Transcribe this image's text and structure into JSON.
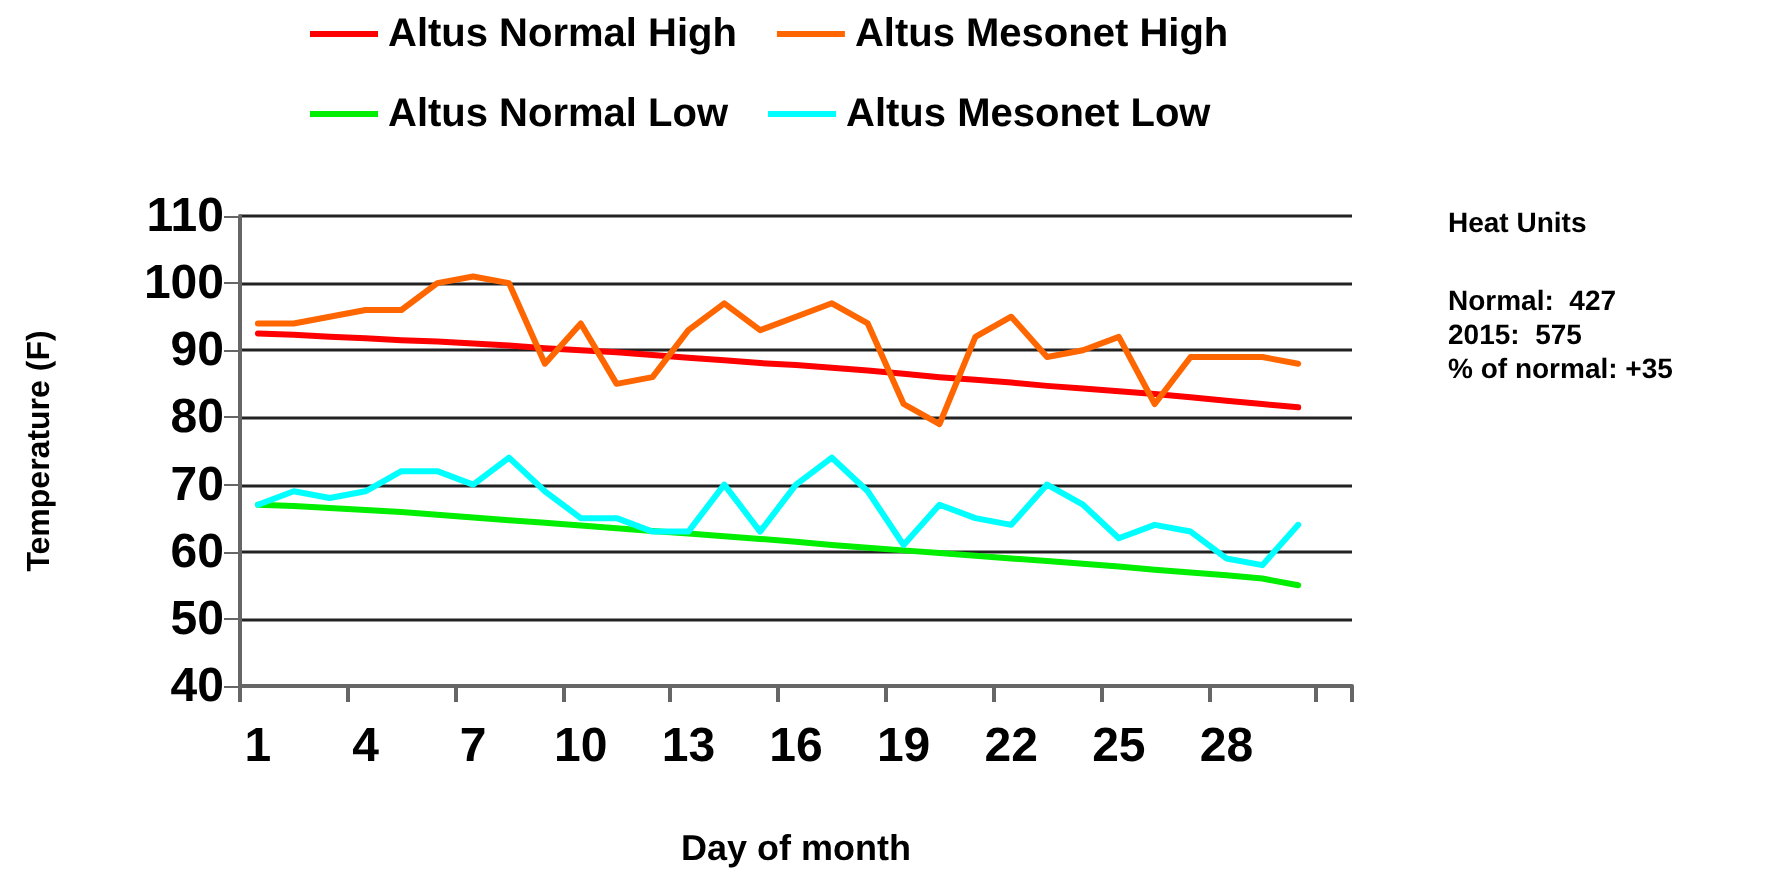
{
  "chart_data": {
    "type": "line",
    "xlabel": "Day of month",
    "ylabel": "Temperature (F)",
    "categories": [
      "1",
      null,
      null,
      "4",
      null,
      null,
      "7",
      null,
      null,
      "10",
      null,
      null,
      "13",
      null,
      null,
      "16",
      null,
      null,
      "19",
      null,
      null,
      "22",
      null,
      null,
      "25",
      null,
      null,
      "28",
      null,
      null,
      null
    ],
    "series": [
      {
        "name": "Altus Normal High",
        "color": "#ff0000",
        "values": [
          92.5,
          92.3,
          92.0,
          91.8,
          91.5,
          91.3,
          91.0,
          90.7,
          90.3,
          90.0,
          89.7,
          89.3,
          88.9,
          88.5,
          88.1,
          87.8,
          87.4,
          87.0,
          86.5,
          86.0,
          85.6,
          85.2,
          84.7,
          84.3,
          83.9,
          83.5,
          83.0,
          82.5,
          82.0,
          81.5,
          null
        ]
      },
      {
        "name": "Altus Mesonet High",
        "color": "#ff6600",
        "values": [
          94,
          94,
          95,
          96,
          96,
          100,
          101,
          100,
          88,
          94,
          85,
          86,
          93,
          97,
          93,
          95,
          97,
          94,
          82,
          79,
          92,
          95,
          89,
          90,
          92,
          82,
          89,
          89,
          89,
          88,
          null
        ]
      },
      {
        "name": "Altus Normal Low",
        "color": "#00ee00",
        "values": [
          67,
          66.8,
          66.5,
          66.2,
          65.9,
          65.5,
          65.1,
          64.7,
          64.3,
          63.9,
          63.5,
          63.1,
          62.7,
          62.3,
          61.9,
          61.5,
          61.0,
          60.6,
          60.2,
          59.8,
          59.4,
          59.0,
          58.6,
          58.2,
          57.8,
          57.3,
          56.9,
          56.5,
          56.0,
          55.0,
          null
        ]
      },
      {
        "name": "Altus Mesonet Low",
        "color": "#00ffff",
        "values": [
          67,
          69,
          68,
          69,
          72,
          72,
          70,
          74,
          69,
          65,
          65,
          63,
          63,
          70,
          63,
          70,
          74,
          69,
          61,
          67,
          65,
          64,
          70,
          67,
          62,
          64,
          63,
          59,
          58,
          64,
          null
        ]
      }
    ],
    "ylim": [
      40,
      110
    ],
    "yticks": [
      40,
      50,
      60,
      70,
      80,
      90,
      100,
      110
    ],
    "grid": "y",
    "legend": "top",
    "marker": "none",
    "line_style": "solid",
    "annotations": [
      "Heat Units",
      "Normal:  427",
      "2015:  575",
      "% of normal: +35"
    ]
  }
}
